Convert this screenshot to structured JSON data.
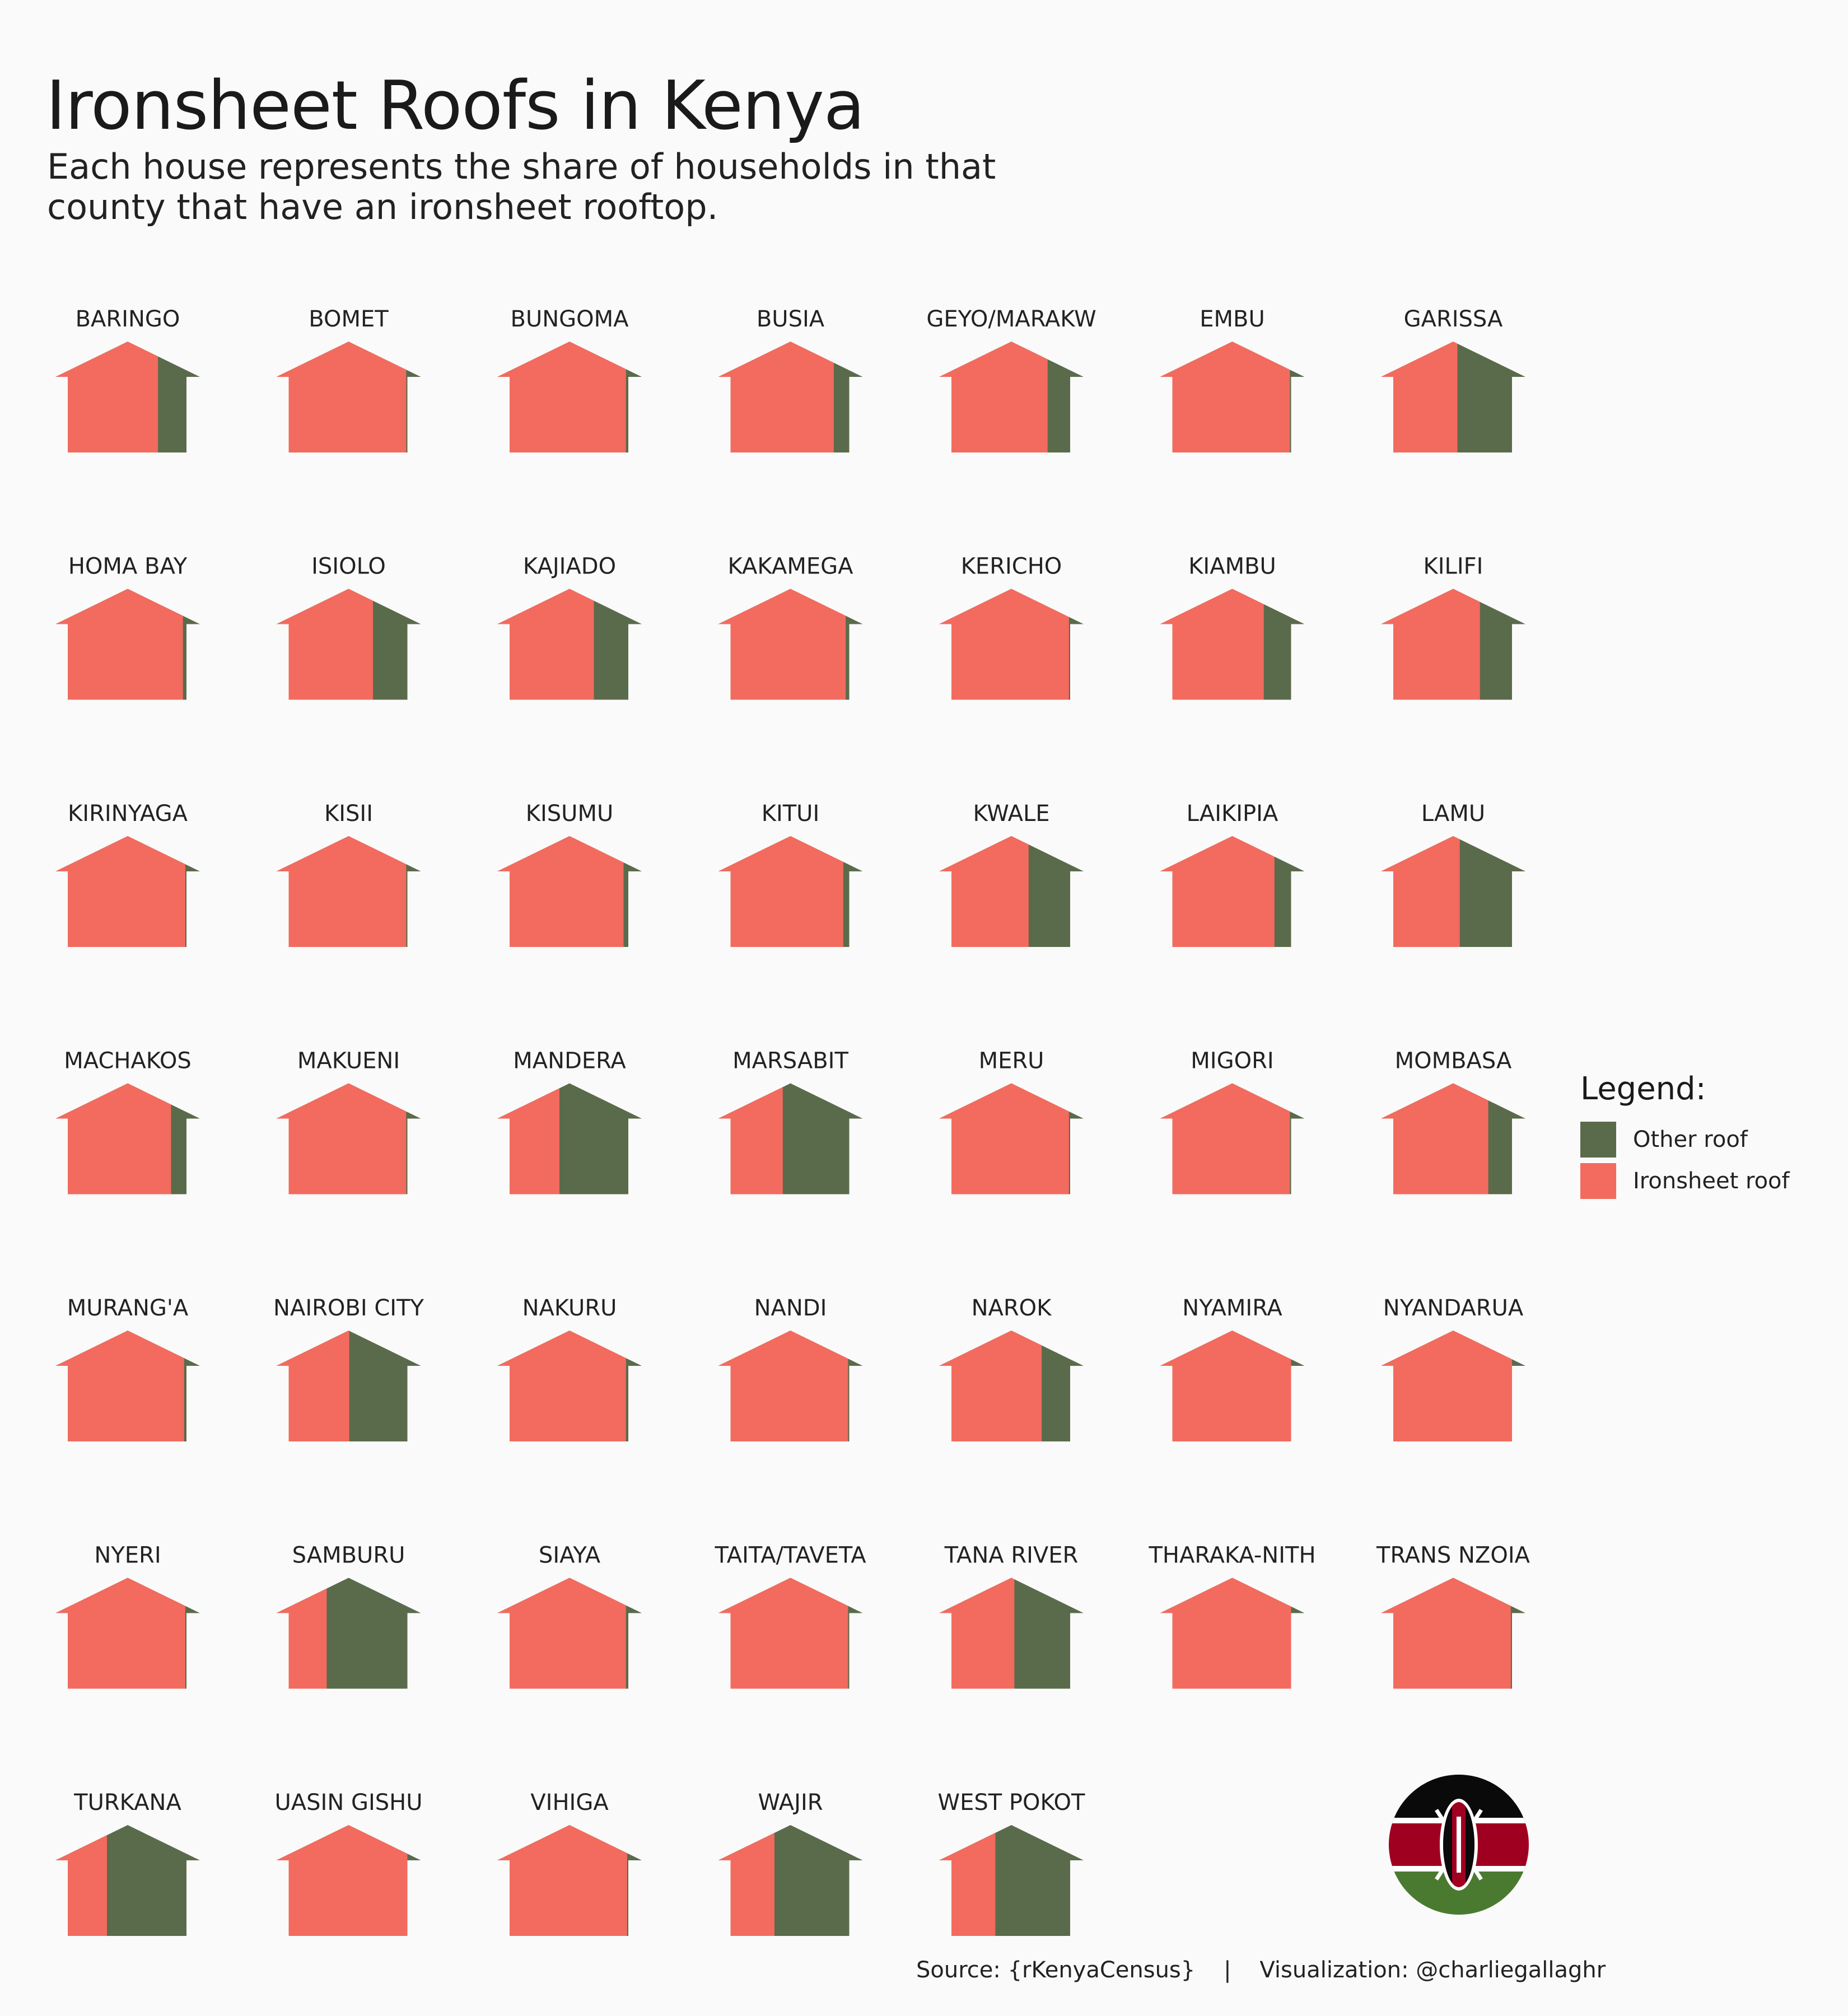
{
  "header": {
    "title": "Ironsheet Roofs in Kenya",
    "subtitle": "Each house represents the share of households in that county that have an ironsheet rooftop."
  },
  "legend": {
    "title": "Legend:",
    "items": [
      {
        "label": "Other roof",
        "color": "#5a6b4b"
      },
      {
        "label": "Ironsheet roof",
        "color": "#f26b5e"
      }
    ]
  },
  "footer": {
    "source": "Source: {rKenyaCensus}    |    Visualization: @charliegallaghr"
  },
  "flag": {
    "icon": "kenya-flag-icon"
  },
  "chart_data": {
    "type": "bar",
    "unit": "share of households",
    "columns": 7,
    "series": [
      {
        "name": "Ironsheet roof",
        "color": "#f26b5e"
      },
      {
        "name": "Other roof",
        "color": "#5a6b4b"
      }
    ],
    "counties": [
      {
        "name": "BARINGO",
        "ironsheet": 0.76
      },
      {
        "name": "BOMET",
        "ironsheet": 0.99
      },
      {
        "name": "BUNGOMA",
        "ironsheet": 0.98
      },
      {
        "name": "BUSIA",
        "ironsheet": 0.87
      },
      {
        "name": "ELGEYO/MARAKWET",
        "display": "GEYO/MARAKW",
        "ironsheet": 0.81
      },
      {
        "name": "EMBU",
        "ironsheet": 0.99
      },
      {
        "name": "GARISSA",
        "ironsheet": 0.54
      },
      {
        "name": "HOMA BAY",
        "ironsheet": 0.97
      },
      {
        "name": "ISIOLO",
        "ironsheet": 0.71
      },
      {
        "name": "KAJIADO",
        "ironsheet": 0.71
      },
      {
        "name": "KAKAMEGA",
        "ironsheet": 0.97
      },
      {
        "name": "KERICHO",
        "ironsheet": 0.99
      },
      {
        "name": "KIAMBU",
        "ironsheet": 0.77
      },
      {
        "name": "KILIFI",
        "ironsheet": 0.73
      },
      {
        "name": "KIRINYAGA",
        "ironsheet": 0.99
      },
      {
        "name": "KISII",
        "ironsheet": 0.99
      },
      {
        "name": "KISUMU",
        "ironsheet": 0.96
      },
      {
        "name": "KITUI",
        "ironsheet": 0.95
      },
      {
        "name": "KWALE",
        "ironsheet": 0.65
      },
      {
        "name": "LAIKIPIA",
        "ironsheet": 0.86
      },
      {
        "name": "LAMU",
        "ironsheet": 0.56
      },
      {
        "name": "MACHAKOS",
        "ironsheet": 0.87
      },
      {
        "name": "MAKUENI",
        "ironsheet": 0.99
      },
      {
        "name": "MANDERA",
        "ironsheet": 0.42
      },
      {
        "name": "MARSABIT",
        "ironsheet": 0.44
      },
      {
        "name": "MERU",
        "ironsheet": 0.99
      },
      {
        "name": "MIGORI",
        "ironsheet": 0.99
      },
      {
        "name": "MOMBASA",
        "ironsheet": 0.8
      },
      {
        "name": "MURANG'A",
        "ironsheet": 0.98
      },
      {
        "name": "NAIROBI CITY",
        "ironsheet": 0.51
      },
      {
        "name": "NAKURU",
        "ironsheet": 0.98
      },
      {
        "name": "NANDI",
        "ironsheet": 0.99
      },
      {
        "name": "NAROK",
        "ironsheet": 0.76
      },
      {
        "name": "NYAMIRA",
        "ironsheet": 1.0
      },
      {
        "name": "NYANDARUA",
        "ironsheet": 1.0
      },
      {
        "name": "NYERI",
        "ironsheet": 0.99
      },
      {
        "name": "SAMBURU",
        "ironsheet": 0.32
      },
      {
        "name": "SIAYA",
        "ironsheet": 0.98
      },
      {
        "name": "TAITA/TAVETA",
        "ironsheet": 0.99
      },
      {
        "name": "TANA RIVER",
        "ironsheet": 0.53
      },
      {
        "name": "THARAKA-NITHI",
        "display": "THARAKA-NITH",
        "ironsheet": 1.0
      },
      {
        "name": "TRANS NZOIA",
        "ironsheet": 0.99
      },
      {
        "name": "TURKANA",
        "ironsheet": 0.33
      },
      {
        "name": "UASIN GISHU",
        "ironsheet": 1.0
      },
      {
        "name": "VIHIGA",
        "ironsheet": 0.99
      },
      {
        "name": "WAJIR",
        "ironsheet": 0.37
      },
      {
        "name": "WEST POKOT",
        "ironsheet": 0.37
      }
    ]
  }
}
